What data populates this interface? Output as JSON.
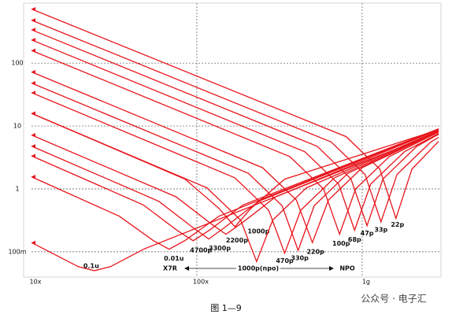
{
  "chart_data": {
    "type": "line",
    "log_x": true,
    "log_y": true,
    "grid": true,
    "xlim": [
      10000000,
      2900000000
    ],
    "ylim": [
      0.042,
      800
    ],
    "xticks": [
      {
        "value": 10000000,
        "label": "10x"
      },
      {
        "value": 100000000,
        "label": "100x"
      },
      {
        "value": 1000000000,
        "label": "1g"
      }
    ],
    "yticks": [
      {
        "value": 0.1,
        "label": "100m"
      },
      1,
      10,
      100
    ],
    "series": [
      {
        "name": "0.1u",
        "color": "#e8141b",
        "x": [
          10000000,
          19200000,
          24000000,
          30000000,
          48000000,
          2900000000
        ],
        "values": [
          0.14,
          0.058,
          0.05,
          0.058,
          0.111,
          8.0
        ]
      },
      {
        "name": "0.01u",
        "color": "#e8141b",
        "x": [
          10000000,
          34000000,
          54400000,
          68000000,
          85000000,
          136000000,
          2900000000
        ],
        "values": [
          1.56,
          0.368,
          0.152,
          0.11,
          0.152,
          0.368,
          9.0
        ]
      },
      {
        "name": "4700p",
        "color": "#e8141b",
        "x": [
          10000000,
          47500000,
          76000000,
          95000000,
          118750000,
          190000000,
          2900000000
        ],
        "values": [
          3.35,
          0.555,
          0.219,
          0.15,
          0.219,
          0.555,
          9.0
        ]
      },
      {
        "name": "3300p",
        "color": "#e8141b",
        "x": [
          10000000,
          59000000,
          94400000,
          118000000,
          147500000,
          236000000,
          2900000000
        ],
        "values": [
          4.79,
          0.634,
          0.244,
          0.16,
          0.244,
          0.634,
          8.9
        ]
      },
      {
        "name": "2200p",
        "color": "#e8141b",
        "x": [
          10000000,
          75000000,
          120000000,
          150000000,
          187500000,
          300000000,
          2900000000
        ],
        "values": [
          7.2,
          0.748,
          0.288,
          0.19,
          0.288,
          0.748,
          8.8
        ]
      },
      {
        "name": "1000p",
        "color": "#e8141b",
        "x": [
          10000000,
          85000000,
          136000000,
          170000000,
          212500000,
          340000000,
          2900000000
        ],
        "values": [
          15.9,
          1.43,
          0.49,
          0.25,
          0.49,
          1.43,
          8.7
        ]
      },
      {
        "name": "1000p(npo)",
        "color": "#e8141b",
        "x": [
          10000000,
          115000000,
          184000000,
          230000000,
          287500000,
          460000000,
          2900000000
        ],
        "values": [
          15.9,
          1.04,
          0.319,
          0.07,
          0.319,
          1.04,
          8.5
        ]
      },
      {
        "name": "470p",
        "color": "#e8141b",
        "x": [
          10000000,
          170000000,
          272000000,
          340000000,
          425000000,
          680000000,
          2900000000
        ],
        "values": [
          33.9,
          1.5,
          0.458,
          0.095,
          0.458,
          1.5,
          8.5
        ]
      },
      {
        "name": "330p",
        "color": "#e8141b",
        "x": [
          10000000,
          205000000,
          328000000,
          410000000,
          512500000,
          820000000,
          2900000000
        ],
        "values": [
          48.2,
          1.77,
          0.54,
          0.105,
          0.54,
          1.77,
          8.3
        ]
      },
      {
        "name": "220p",
        "color": "#e8141b",
        "x": [
          10000000,
          250000000,
          400000000,
          500000000,
          625000000,
          1000000000,
          2900000000
        ],
        "values": [
          72.3,
          2.17,
          0.666,
          0.14,
          0.666,
          2.17,
          8.2
        ]
      },
      {
        "name": "100p",
        "color": "#e8141b",
        "x": [
          10000000,
          365000000,
          584000000,
          730000000,
          912500000,
          1460000000,
          2900000000
        ],
        "values": [
          159,
          3.27,
          1.0,
          0.19,
          1.0,
          3.27,
          8.0
        ]
      },
      {
        "name": "68p",
        "color": "#e8141b",
        "x": [
          10000000,
          450000000,
          720000000,
          900000000,
          1125000000,
          1800000000,
          2900000000
        ],
        "values": [
          234,
          3.9,
          1.19,
          0.22,
          1.19,
          3.9,
          7.6
        ]
      },
      {
        "name": "47p",
        "color": "#e8141b",
        "x": [
          10000000,
          535000000,
          856000000,
          1070000000,
          1337500000,
          2140000000,
          2900000000
        ],
        "values": [
          339,
          4.75,
          1.44,
          0.26,
          1.44,
          4.75,
          7.4
        ]
      },
      {
        "name": "33p",
        "color": "#e8141b",
        "x": [
          10000000,
          650000000,
          1040000000,
          1300000000,
          1625000000,
          2600000000,
          2900000000
        ],
        "values": [
          482,
          5.57,
          1.7,
          0.3,
          1.7,
          5.57,
          6.6
        ]
      },
      {
        "name": "22p",
        "color": "#e8141b",
        "x": [
          10000000,
          800000000,
          1280000000,
          1600000000,
          2000000000,
          2900000000
        ],
        "values": [
          723,
          6.78,
          2.06,
          0.34,
          2.06,
          5.69
        ]
      }
    ],
    "annotations": [
      "X7R",
      "NPO"
    ],
    "caption": "图 1—9",
    "watermark": "公众号 · 电子汇"
  }
}
